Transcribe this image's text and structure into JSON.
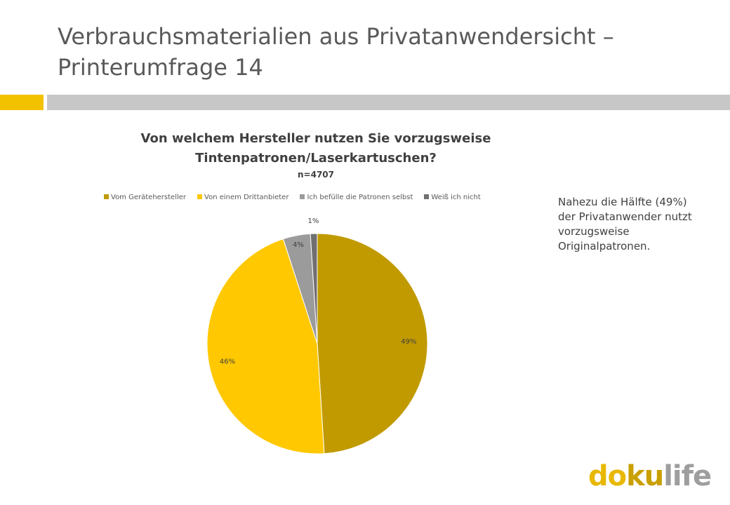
{
  "slide": {
    "title": "Verbrauchsmaterialien aus Privatanwendersicht  –  Printerumfrage 14"
  },
  "note": {
    "text": "Nahezu die Hälfte (49%) der Privatanwender nutzt vorzugsweise Originalpatronen."
  },
  "logo": {
    "text": "dokulife",
    "colors": {
      "d": "#e8b800",
      "o": "#e8b800",
      "ku": "#c9a000",
      "life": "#9e9e9e"
    }
  },
  "colors": {
    "accent": "#f2c200",
    "rule": "#c7c7c7"
  },
  "chart_data": {
    "type": "pie",
    "title": "Von welchem Hersteller nutzen Sie vorzugsweise Tintenpatronen/Laserkartuschen?",
    "subtitle": "n=4707",
    "legend_position": "top",
    "series": [
      {
        "name": "Vom Gerätehersteller",
        "value": 49,
        "label": "49%",
        "color": "#c19a00"
      },
      {
        "name": "Von einem Drittanbieter",
        "value": 46,
        "label": "46%",
        "color": "#ffc800"
      },
      {
        "name": "Ich befülle die Patronen selbst",
        "value": 4,
        "label": "4%",
        "color": "#9b9b9b"
      },
      {
        "name": "Weiß ich nicht",
        "value": 1,
        "label": "1%",
        "color": "#707070"
      }
    ]
  }
}
